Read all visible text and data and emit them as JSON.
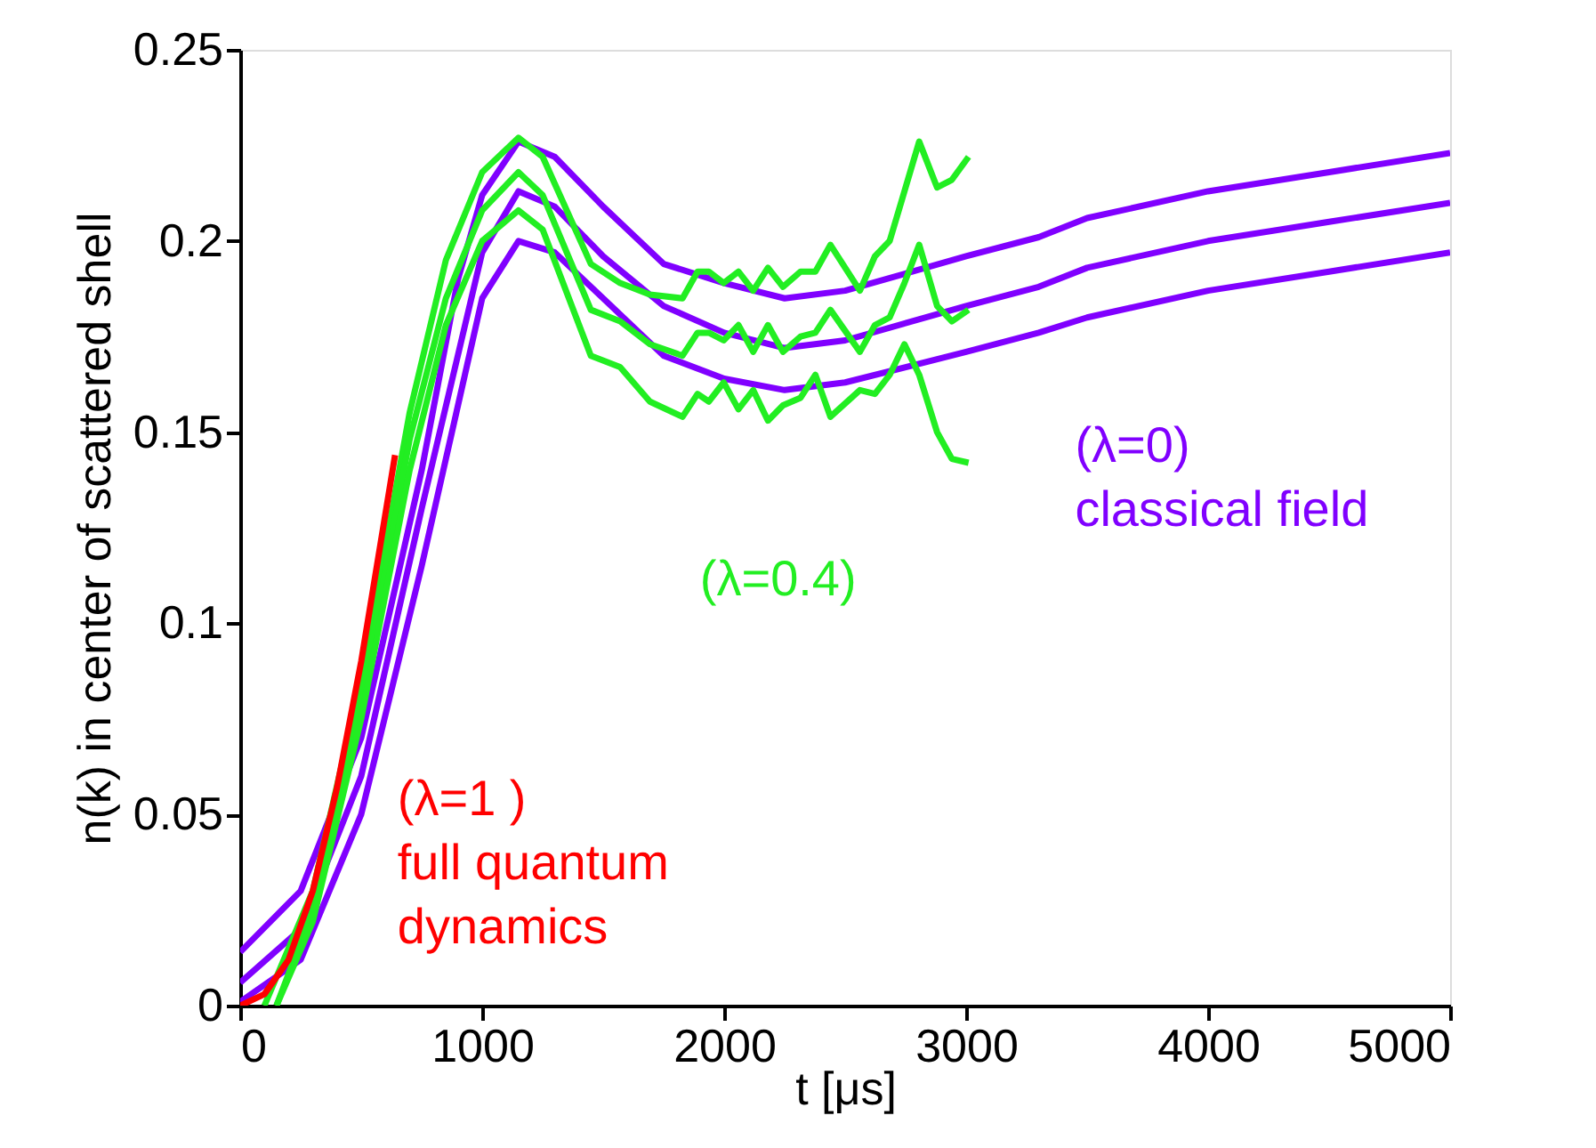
{
  "chart_data": {
    "type": "line",
    "xlabel": "t [μs]",
    "ylabel": "n(k) in center of scattered shell",
    "xlim": [
      0,
      5000
    ],
    "ylim": [
      0,
      0.25
    ],
    "xticks": [
      0,
      1000,
      2000,
      3000,
      4000,
      5000
    ],
    "yticks": [
      0,
      0.05,
      0.1,
      0.15,
      0.2,
      0.25
    ],
    "grid": false,
    "marker": "none",
    "line_style": "solid",
    "series": [
      {
        "name": "(λ=0)\nclassical field",
        "color": "#8000ff",
        "x": [
          0,
          250,
          500,
          750,
          900,
          1000,
          1150,
          1300,
          1500,
          1750,
          2000,
          2250,
          2500,
          3000,
          3300,
          3500,
          4000,
          4500,
          5000
        ],
        "values": [
          0.014,
          0.03,
          0.07,
          0.14,
          0.19,
          0.212,
          0.226,
          0.222,
          0.209,
          0.194,
          0.189,
          0.185,
          0.187,
          0.196,
          0.201,
          0.206,
          0.213,
          0.218,
          0.223
        ]
      },
      {
        "color": "#8000ff",
        "x": [
          0,
          250,
          500,
          750,
          1000,
          1150,
          1300,
          1500,
          1750,
          2000,
          2250,
          2500,
          3000,
          3300,
          3500,
          4000,
          4500,
          5000
        ],
        "values": [
          0.006,
          0.02,
          0.06,
          0.13,
          0.197,
          0.213,
          0.209,
          0.196,
          0.183,
          0.176,
          0.172,
          0.174,
          0.183,
          0.188,
          0.193,
          0.2,
          0.205,
          0.21
        ]
      },
      {
        "color": "#8000ff",
        "x": [
          0,
          250,
          500,
          750,
          1000,
          1150,
          1300,
          1500,
          1750,
          2000,
          2250,
          2500,
          3000,
          3300,
          3500,
          4000,
          4500,
          5000
        ],
        "values": [
          0.001,
          0.012,
          0.05,
          0.115,
          0.185,
          0.2,
          0.197,
          0.185,
          0.17,
          0.164,
          0.161,
          0.163,
          0.171,
          0.176,
          0.18,
          0.187,
          0.192,
          0.197
        ]
      },
      {
        "name": "(λ=0.4)",
        "color": "#22ee22",
        "x": [
          100,
          300,
          500,
          700,
          850,
          1000,
          1150,
          1250,
          1449,
          1570,
          1693,
          1828,
          1890,
          1937,
          1998,
          2059,
          2120,
          2181,
          2243,
          2316,
          2377,
          2439,
          2561,
          2623,
          2684,
          2745,
          2806,
          2880,
          2941,
          3010
        ],
        "values": [
          0,
          0.03,
          0.085,
          0.155,
          0.195,
          0.218,
          0.227,
          0.222,
          0.194,
          0.189,
          0.186,
          0.185,
          0.192,
          0.192,
          0.189,
          0.192,
          0.187,
          0.193,
          0.188,
          0.192,
          0.192,
          0.199,
          0.187,
          0.196,
          0.2,
          0.213,
          0.226,
          0.214,
          0.216,
          0.222
        ]
      },
      {
        "color": "#22ee22",
        "x": [
          150,
          300,
          500,
          700,
          850,
          1000,
          1150,
          1250,
          1449,
          1570,
          1693,
          1828,
          1890,
          1937,
          1998,
          2059,
          2120,
          2181,
          2243,
          2316,
          2377,
          2439,
          2561,
          2623,
          2684,
          2745,
          2806,
          2880,
          2941,
          3010
        ],
        "values": [
          0,
          0.025,
          0.08,
          0.148,
          0.185,
          0.208,
          0.218,
          0.212,
          0.182,
          0.179,
          0.173,
          0.17,
          0.176,
          0.176,
          0.174,
          0.178,
          0.171,
          0.178,
          0.171,
          0.175,
          0.176,
          0.182,
          0.171,
          0.178,
          0.18,
          0.189,
          0.199,
          0.183,
          0.179,
          0.182
        ]
      },
      {
        "color": "#22ee22",
        "x": [
          150,
          300,
          500,
          700,
          850,
          1000,
          1150,
          1250,
          1449,
          1570,
          1693,
          1828,
          1890,
          1937,
          1998,
          2059,
          2120,
          2181,
          2243,
          2316,
          2377,
          2439,
          2561,
          2623,
          2684,
          2745,
          2806,
          2880,
          2941,
          3010
        ],
        "values": [
          0,
          0.022,
          0.075,
          0.14,
          0.178,
          0.2,
          0.208,
          0.203,
          0.17,
          0.167,
          0.158,
          0.154,
          0.16,
          0.158,
          0.163,
          0.156,
          0.161,
          0.153,
          0.157,
          0.159,
          0.165,
          0.154,
          0.161,
          0.16,
          0.165,
          0.173,
          0.165,
          0.15,
          0.143,
          0.142
        ]
      },
      {
        "name": "(λ=1 )\nfull quantum\ndynamics",
        "color": "#ff0000",
        "x": [
          0,
          100,
          200,
          300,
          400,
          500,
          640
        ],
        "values": [
          0,
          0.003,
          0.012,
          0.03,
          0.057,
          0.09,
          0.144
        ]
      }
    ]
  }
}
